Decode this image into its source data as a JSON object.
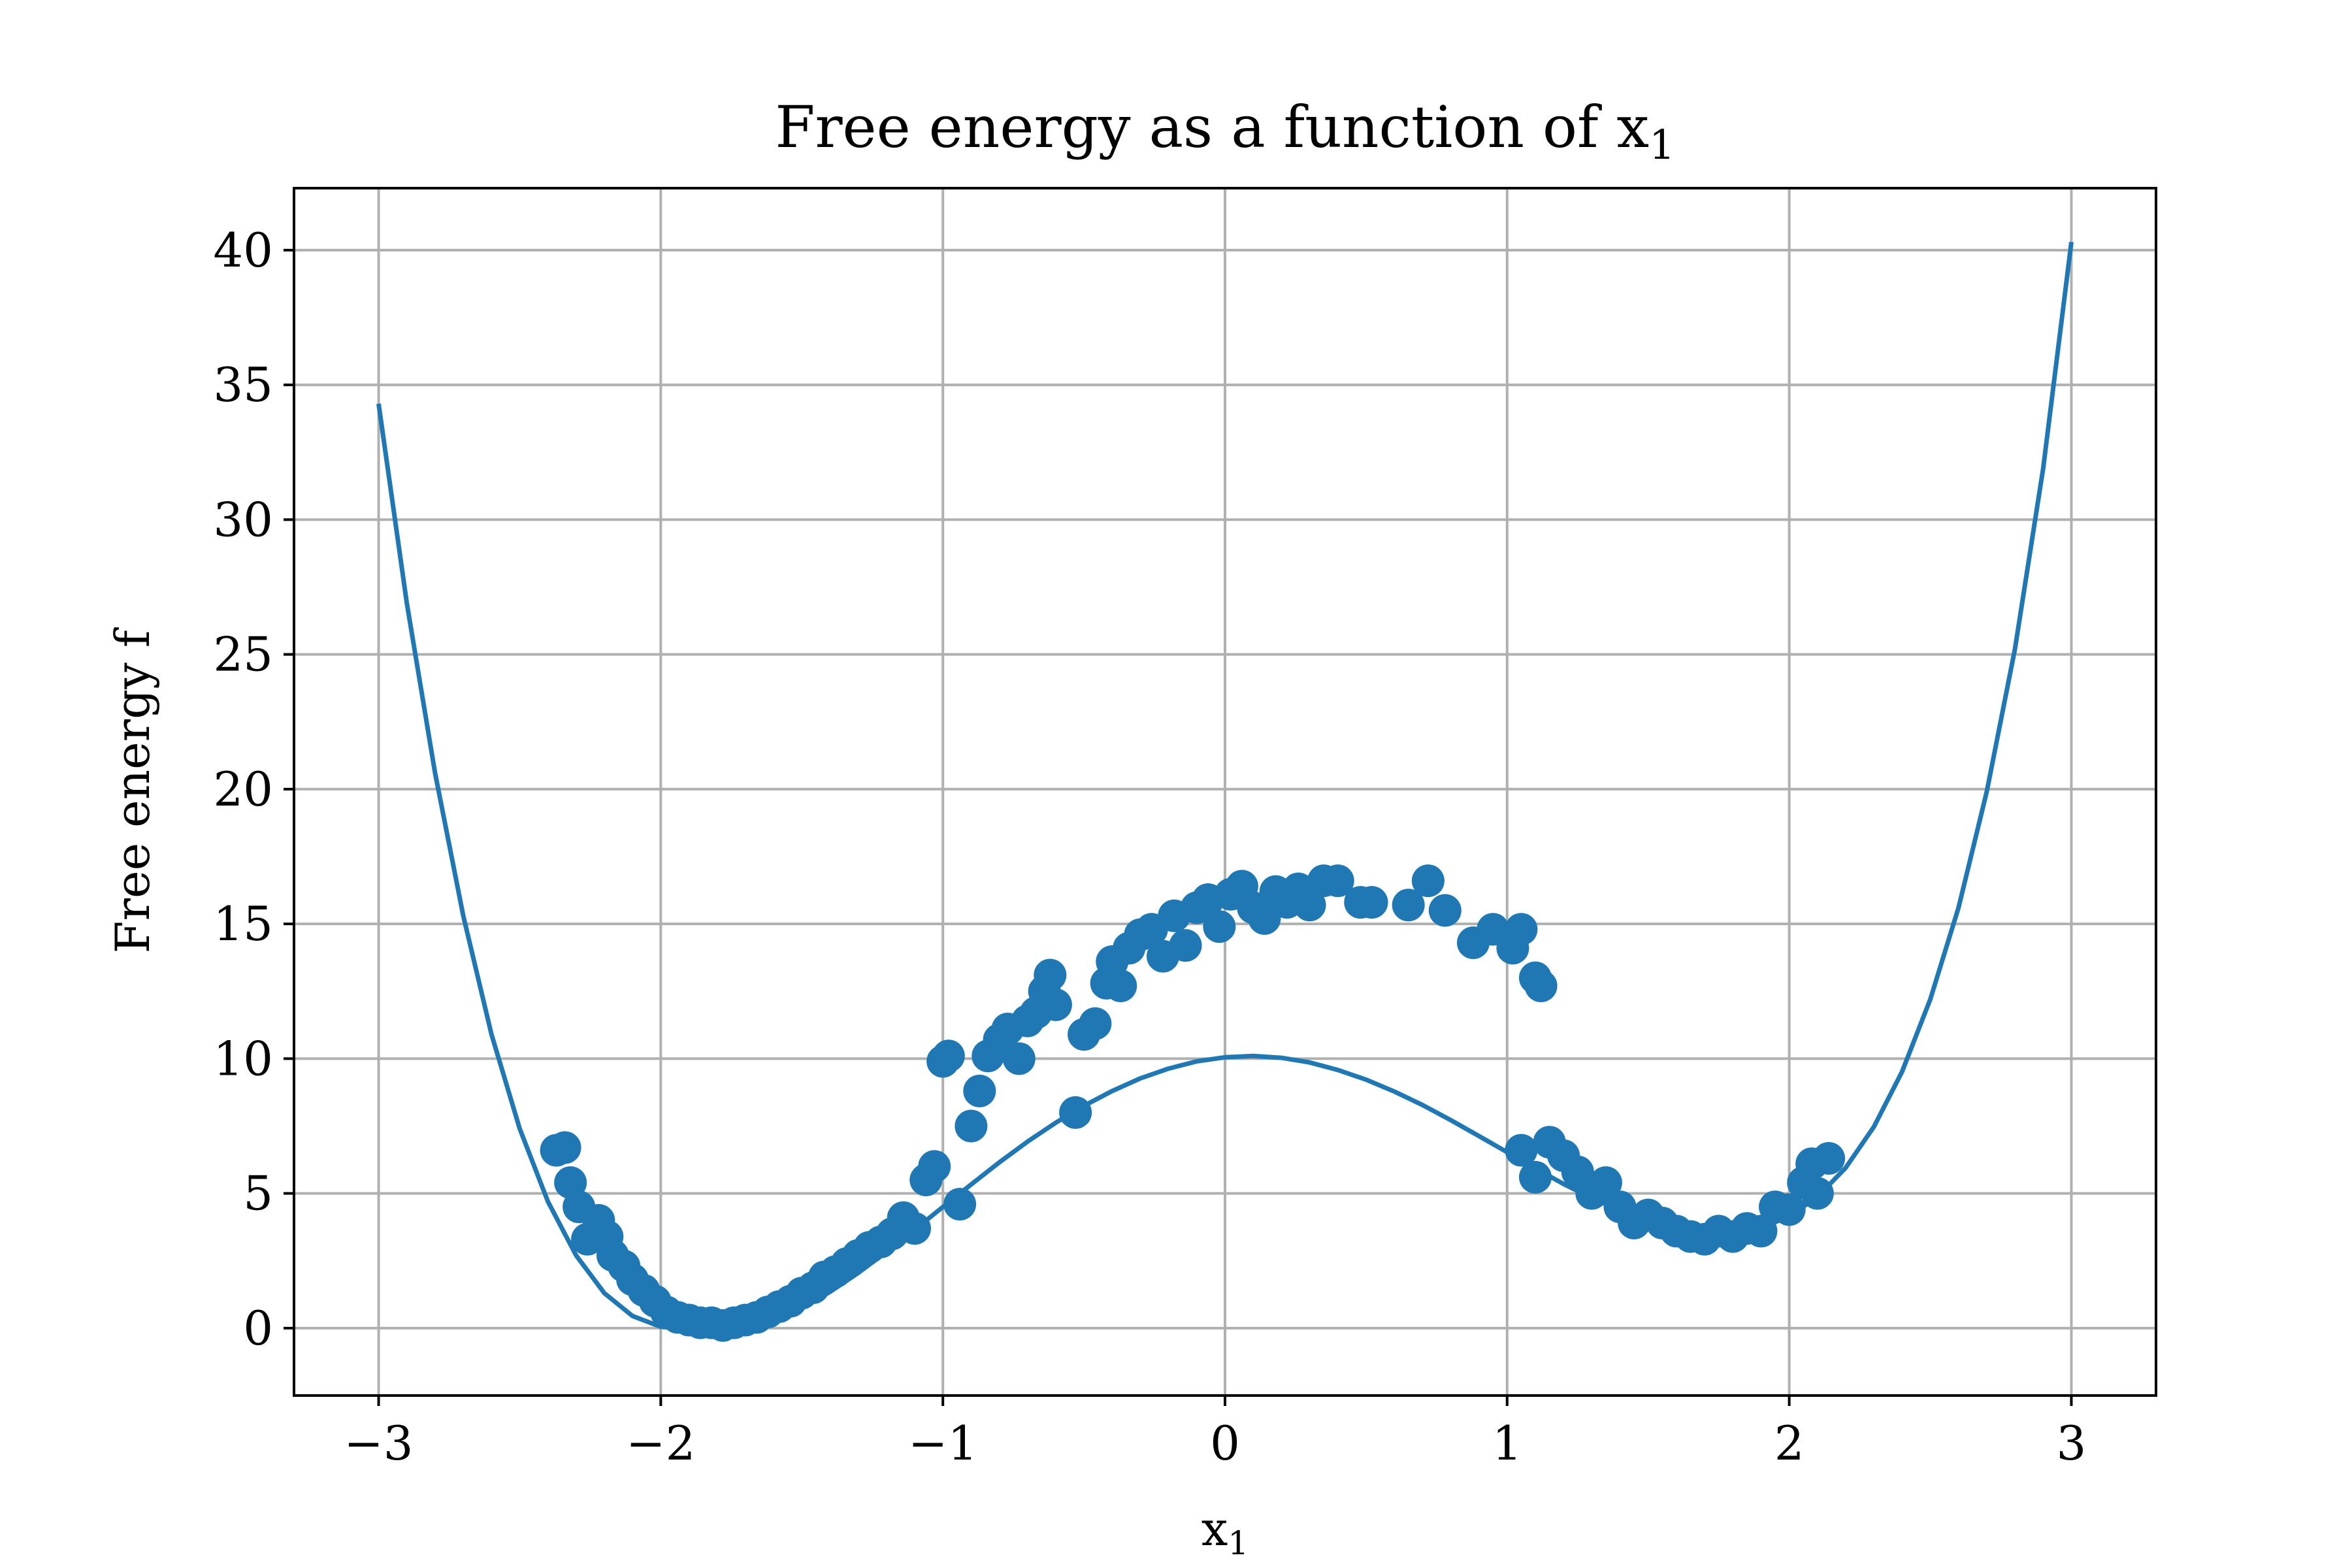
{
  "chart_data": {
    "type": "scatter",
    "title": {
      "main": "Free energy as a function of x",
      "sub": "1"
    },
    "xlabel": {
      "main": "x",
      "sub": "1"
    },
    "ylabel": "Free energy f",
    "xlim": [
      -3.3,
      3.3
    ],
    "ylim": [
      -2.5,
      42.3
    ],
    "xticks": [
      -3,
      -2,
      -1,
      0,
      1,
      2,
      3
    ],
    "xtick_labels": [
      "−3",
      "−2",
      "−1",
      "0",
      "1",
      "2",
      "3"
    ],
    "yticks": [
      0,
      5,
      10,
      15,
      20,
      25,
      30,
      35,
      40
    ],
    "ytick_labels": [
      "0",
      "5",
      "10",
      "15",
      "20",
      "25",
      "30",
      "35",
      "40"
    ],
    "grid": true,
    "color": "#1f77b4",
    "series": [
      {
        "kind": "line",
        "x": [
          -3.0,
          -2.9,
          -2.8,
          -2.7,
          -2.6,
          -2.5,
          -2.4,
          -2.3,
          -2.2,
          -2.1,
          -2.0,
          -1.9,
          -1.8,
          -1.7,
          -1.6,
          -1.5,
          -1.4,
          -1.3,
          -1.2,
          -1.1,
          -1.0,
          -0.9,
          -0.8,
          -0.7,
          -0.6,
          -0.5,
          -0.4,
          -0.3,
          -0.2,
          -0.1,
          0.0,
          0.1,
          0.2,
          0.3,
          0.4,
          0.5,
          0.6,
          0.7,
          0.8,
          0.9,
          1.0,
          1.1,
          1.2,
          1.3,
          1.4,
          1.5,
          1.6,
          1.7,
          1.8,
          1.9,
          2.0,
          2.1,
          2.2,
          2.3,
          2.4,
          2.5,
          2.6,
          2.7,
          2.8,
          2.9,
          3.0
        ],
        "y": [
          34.3,
          26.9,
          20.6,
          15.3,
          10.9,
          7.4,
          4.7,
          2.7,
          1.3,
          0.45,
          0.05,
          -0.02,
          -0.15,
          -0.03,
          0.28,
          0.75,
          1.35,
          2.05,
          2.83,
          3.65,
          4.5,
          5.33,
          6.15,
          6.92,
          7.62,
          8.25,
          8.8,
          9.27,
          9.63,
          9.9,
          10.05,
          10.1,
          10.03,
          9.86,
          9.58,
          9.22,
          8.78,
          8.28,
          7.72,
          7.13,
          6.53,
          5.93,
          5.35,
          4.83,
          4.36,
          3.97,
          3.69,
          3.53,
          3.53,
          3.72,
          4.15,
          4.87,
          5.95,
          7.47,
          9.52,
          12.2,
          15.6,
          19.9,
          25.2,
          31.9,
          40.3
        ]
      },
      {
        "kind": "scatter",
        "x": [
          -2.37,
          -2.34,
          -2.32,
          -2.29,
          -2.26,
          -2.22,
          -2.19,
          -2.17,
          -2.13,
          -2.1,
          -2.06,
          -2.02,
          -1.98,
          -1.94,
          -1.9,
          -1.86,
          -1.82,
          -1.78,
          -1.74,
          -1.7,
          -1.66,
          -1.62,
          -1.58,
          -1.54,
          -1.5,
          -1.46,
          -1.42,
          -1.38,
          -1.34,
          -1.3,
          -1.26,
          -1.22,
          -1.18,
          -1.14,
          -1.1,
          -1.06,
          -1.03,
          -1.0,
          -0.98,
          -0.94,
          -0.9,
          -0.87,
          -0.84,
          -0.8,
          -0.77,
          -0.73,
          -0.7,
          -0.67,
          -0.64,
          -0.62,
          -0.6,
          -0.53,
          -0.5,
          -0.46,
          -0.42,
          -0.4,
          -0.37,
          -0.34,
          -0.3,
          -0.26,
          -0.22,
          -0.18,
          -0.14,
          -0.1,
          -0.06,
          -0.02,
          0.02,
          0.06,
          0.1,
          0.14,
          0.18,
          0.22,
          0.26,
          0.3,
          0.35,
          0.4,
          0.48,
          0.52,
          0.65,
          0.72,
          0.78,
          0.88,
          0.95,
          1.05,
          1.1,
          1.12,
          1.02,
          1.05,
          1.1,
          1.15,
          1.2,
          1.25,
          1.3,
          1.35,
          1.4,
          1.45,
          1.5,
          1.55,
          1.6,
          1.65,
          1.7,
          1.75,
          1.8,
          1.85,
          1.9,
          1.95,
          2.0,
          2.05,
          2.08,
          2.1,
          2.14
        ],
        "y": [
          6.6,
          6.7,
          5.4,
          4.5,
          3.3,
          4.0,
          3.4,
          2.7,
          2.3,
          1.8,
          1.4,
          1.0,
          0.6,
          0.4,
          0.3,
          0.2,
          0.2,
          0.1,
          0.2,
          0.3,
          0.4,
          0.6,
          0.8,
          1.0,
          1.3,
          1.5,
          1.9,
          2.1,
          2.4,
          2.7,
          3.0,
          3.2,
          3.5,
          4.1,
          3.7,
          5.5,
          6.0,
          9.9,
          10.1,
          4.6,
          7.5,
          8.8,
          10.1,
          10.7,
          11.1,
          10.0,
          11.4,
          11.7,
          12.5,
          13.1,
          12.0,
          8.0,
          10.9,
          11.3,
          12.8,
          13.6,
          12.7,
          14.1,
          14.6,
          14.8,
          13.8,
          15.3,
          14.2,
          15.6,
          15.9,
          14.9,
          16.1,
          16.4,
          15.6,
          15.2,
          16.2,
          15.8,
          16.3,
          15.7,
          16.6,
          16.6,
          15.8,
          15.8,
          15.7,
          16.6,
          15.5,
          14.3,
          14.8,
          14.8,
          13.0,
          12.7,
          14.1,
          6.6,
          5.6,
          6.9,
          6.4,
          5.8,
          5.0,
          5.4,
          4.5,
          3.9,
          4.2,
          3.9,
          3.6,
          3.4,
          3.3,
          3.6,
          3.4,
          3.7,
          3.6,
          4.5,
          4.4,
          5.4,
          6.1,
          5.0,
          6.3
        ],
        "color": "#1f77b4"
      }
    ]
  }
}
